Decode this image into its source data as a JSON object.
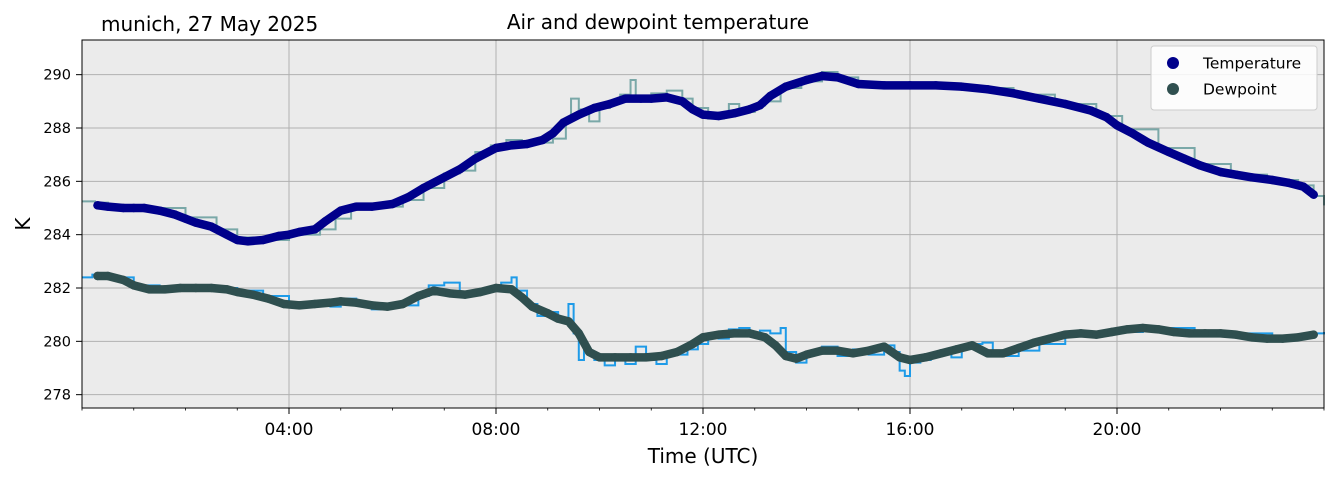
{
  "figure": {
    "location_date": "munich, 27 May 2025"
  },
  "chart_data": {
    "type": "line",
    "title": "Air and dewpoint temperature",
    "xlabel": "Time (UTC)",
    "ylabel": "K",
    "xlim": [
      0,
      24
    ],
    "ylim": [
      277.5,
      291.3
    ],
    "x_unit": "hours UTC",
    "xticks": [
      4,
      8,
      12,
      16,
      20
    ],
    "xtick_labels": [
      "04:00",
      "08:00",
      "12:00",
      "16:00",
      "20:00"
    ],
    "yticks": [
      278,
      280,
      282,
      284,
      286,
      288,
      290
    ],
    "ytick_labels": [
      "278",
      "280",
      "282",
      "284",
      "286",
      "288",
      "290"
    ],
    "grid": true,
    "legend_position": "top-right",
    "background_color": "#ebebeb",
    "series": [
      {
        "name": "Temperature",
        "role": "smoothed",
        "legend": true,
        "color": "#00008b",
        "x": [
          0.3,
          0.5,
          0.8,
          1.0,
          1.2,
          1.5,
          1.8,
          2.0,
          2.2,
          2.5,
          2.8,
          3.0,
          3.2,
          3.5,
          3.8,
          4.0,
          4.2,
          4.5,
          4.7,
          5.0,
          5.3,
          5.6,
          6.0,
          6.3,
          6.6,
          7.0,
          7.3,
          7.6,
          8.0,
          8.3,
          8.6,
          8.9,
          9.1,
          9.3,
          9.6,
          9.9,
          10.2,
          10.5,
          10.8,
          11.0,
          11.3,
          11.6,
          11.8,
          12.0,
          12.3,
          12.6,
          12.9,
          13.1,
          13.3,
          13.6,
          14.0,
          14.3,
          14.6,
          15.0,
          15.5,
          16.0,
          16.5,
          17.0,
          17.5,
          18.0,
          18.5,
          19.0,
          19.5,
          19.8,
          20.0,
          20.3,
          20.6,
          21.0,
          21.3,
          21.6,
          22.0,
          22.3,
          22.6,
          23.0,
          23.3,
          23.6,
          23.8
        ],
        "y": [
          285.1,
          285.05,
          285.0,
          285.0,
          285.0,
          284.9,
          284.75,
          284.6,
          284.45,
          284.3,
          284.0,
          283.8,
          283.75,
          283.8,
          283.95,
          284.0,
          284.1,
          284.2,
          284.5,
          284.9,
          285.05,
          285.05,
          285.15,
          285.4,
          285.75,
          286.15,
          286.45,
          286.85,
          287.25,
          287.35,
          287.4,
          287.55,
          287.8,
          288.2,
          288.5,
          288.75,
          288.9,
          289.1,
          289.1,
          289.1,
          289.15,
          289.0,
          288.7,
          288.5,
          288.45,
          288.55,
          288.7,
          288.85,
          289.2,
          289.55,
          289.8,
          289.95,
          289.9,
          289.65,
          289.6,
          289.6,
          289.6,
          289.55,
          289.45,
          289.3,
          289.1,
          288.9,
          288.65,
          288.4,
          288.1,
          287.8,
          287.45,
          287.1,
          286.85,
          286.6,
          286.35,
          286.25,
          286.15,
          286.05,
          285.95,
          285.8,
          285.5
        ]
      },
      {
        "name": "Dewpoint",
        "role": "smoothed",
        "legend": true,
        "color": "#2f4f4f",
        "x": [
          0.3,
          0.5,
          0.8,
          1.0,
          1.3,
          1.6,
          1.9,
          2.2,
          2.5,
          2.8,
          3.0,
          3.3,
          3.6,
          3.9,
          4.2,
          4.5,
          4.8,
          5.0,
          5.3,
          5.6,
          5.9,
          6.2,
          6.5,
          6.8,
          7.1,
          7.4,
          7.7,
          8.0,
          8.3,
          8.5,
          8.7,
          9.0,
          9.2,
          9.4,
          9.6,
          9.8,
          10.0,
          10.3,
          10.6,
          10.9,
          11.2,
          11.5,
          11.8,
          12.0,
          12.3,
          12.6,
          12.9,
          13.2,
          13.4,
          13.6,
          13.8,
          14.0,
          14.3,
          14.6,
          14.9,
          15.2,
          15.5,
          15.8,
          16.0,
          16.3,
          16.6,
          16.9,
          17.2,
          17.5,
          17.8,
          18.1,
          18.4,
          18.7,
          19.0,
          19.3,
          19.6,
          19.9,
          20.2,
          20.5,
          20.8,
          21.1,
          21.4,
          21.7,
          22.0,
          22.3,
          22.6,
          22.9,
          23.2,
          23.5,
          23.8
        ],
        "y": [
          282.45,
          282.45,
          282.3,
          282.1,
          281.95,
          281.95,
          282.0,
          282.0,
          282.0,
          281.95,
          281.85,
          281.75,
          281.6,
          281.4,
          281.35,
          281.4,
          281.45,
          281.5,
          281.45,
          281.35,
          281.3,
          281.4,
          281.7,
          281.9,
          281.8,
          281.75,
          281.85,
          282.0,
          281.95,
          281.65,
          281.3,
          281.05,
          280.85,
          280.75,
          280.3,
          279.6,
          279.4,
          279.4,
          279.4,
          279.4,
          279.45,
          279.6,
          279.9,
          280.15,
          280.25,
          280.3,
          280.3,
          280.15,
          279.85,
          279.45,
          279.35,
          279.5,
          279.65,
          279.65,
          279.55,
          279.65,
          279.8,
          279.4,
          279.3,
          279.4,
          279.55,
          279.7,
          279.85,
          279.55,
          279.55,
          279.75,
          279.95,
          280.1,
          280.25,
          280.3,
          280.25,
          280.35,
          280.45,
          280.5,
          280.45,
          280.35,
          280.3,
          280.3,
          280.3,
          280.25,
          280.15,
          280.1,
          280.1,
          280.15,
          280.25
        ]
      },
      {
        "name": "Temperature (raw)",
        "role": "raw",
        "legend": false,
        "color": "#7aa8a8",
        "x": [
          0.0,
          0.25,
          0.5,
          1.0,
          2.0,
          2.6,
          3.0,
          3.3,
          3.6,
          4.0,
          4.6,
          4.9,
          5.2,
          5.8,
          6.2,
          6.6,
          7.0,
          7.3,
          7.6,
          7.9,
          8.2,
          8.5,
          8.8,
          9.1,
          9.35,
          9.45,
          9.6,
          9.8,
          10.0,
          10.2,
          10.4,
          10.6,
          10.7,
          10.8,
          11.0,
          11.3,
          11.6,
          11.8,
          12.1,
          12.4,
          12.5,
          12.7,
          13.0,
          13.2,
          13.5,
          13.9,
          14.3,
          14.6,
          15.0,
          15.5,
          16.0,
          16.6,
          17.2,
          18.0,
          18.8,
          19.6,
          20.1,
          20.8,
          21.5,
          22.2,
          22.9,
          23.5,
          23.8,
          24.0
        ],
        "y": [
          285.25,
          285.2,
          285.1,
          285.0,
          284.65,
          284.2,
          283.9,
          283.75,
          283.8,
          284.0,
          284.2,
          284.6,
          285.1,
          285.05,
          285.3,
          285.75,
          286.3,
          286.4,
          287.1,
          287.35,
          287.55,
          287.45,
          287.45,
          287.6,
          288.3,
          289.1,
          288.7,
          288.25,
          288.75,
          288.95,
          289.25,
          289.8,
          289.2,
          289.05,
          289.3,
          289.4,
          289.1,
          288.75,
          288.35,
          288.4,
          288.9,
          288.6,
          288.85,
          289.0,
          289.5,
          289.75,
          290.1,
          289.9,
          289.6,
          289.6,
          289.6,
          289.6,
          289.5,
          289.25,
          288.9,
          288.45,
          287.95,
          287.25,
          286.65,
          286.25,
          286.05,
          285.85,
          285.45,
          285.1
        ]
      },
      {
        "name": "Dewpoint (raw)",
        "role": "raw",
        "legend": false,
        "color": "#1e9be8",
        "x": [
          0.0,
          0.2,
          0.5,
          1.0,
          1.5,
          1.8,
          2.2,
          2.6,
          3.0,
          3.5,
          4.0,
          4.4,
          4.8,
          5.0,
          5.3,
          5.6,
          5.9,
          6.2,
          6.5,
          6.7,
          7.0,
          7.3,
          7.6,
          7.9,
          8.1,
          8.3,
          8.4,
          8.6,
          8.8,
          9.0,
          9.2,
          9.4,
          9.5,
          9.6,
          9.7,
          9.8,
          9.9,
          10.1,
          10.3,
          10.5,
          10.7,
          10.9,
          11.1,
          11.3,
          11.5,
          11.7,
          11.9,
          12.1,
          12.3,
          12.5,
          12.7,
          12.9,
          13.1,
          13.3,
          13.5,
          13.6,
          13.8,
          14.0,
          14.3,
          14.6,
          14.9,
          15.2,
          15.5,
          15.7,
          15.8,
          15.9,
          16.0,
          16.2,
          16.4,
          16.6,
          16.8,
          17.0,
          17.2,
          17.4,
          17.6,
          17.8,
          18.1,
          18.5,
          19.0,
          19.5,
          20.0,
          20.5,
          21.0,
          21.5,
          22.0,
          22.5,
          23.0,
          23.5,
          23.8,
          24.0
        ],
        "y": [
          282.4,
          282.5,
          282.4,
          282.1,
          282.0,
          282.05,
          282.0,
          282.0,
          281.9,
          281.7,
          281.3,
          281.35,
          281.3,
          281.6,
          281.45,
          281.2,
          281.3,
          281.35,
          281.7,
          282.1,
          282.2,
          281.7,
          281.9,
          282.05,
          282.2,
          282.4,
          281.9,
          281.4,
          280.95,
          281.1,
          280.8,
          281.4,
          280.3,
          279.3,
          279.8,
          279.6,
          279.3,
          279.1,
          279.4,
          279.15,
          279.8,
          279.3,
          279.15,
          279.6,
          279.5,
          279.7,
          279.9,
          280.3,
          280.1,
          280.45,
          280.5,
          280.3,
          280.4,
          280.3,
          280.5,
          279.6,
          279.2,
          279.6,
          279.8,
          279.45,
          279.7,
          279.5,
          279.85,
          279.6,
          278.9,
          278.7,
          279.2,
          279.3,
          279.55,
          279.6,
          279.4,
          279.75,
          279.9,
          279.95,
          279.5,
          279.45,
          279.65,
          279.9,
          280.25,
          280.3,
          280.35,
          280.5,
          280.5,
          280.3,
          280.3,
          280.3,
          280.1,
          280.15,
          280.3,
          280.35
        ]
      }
    ]
  }
}
